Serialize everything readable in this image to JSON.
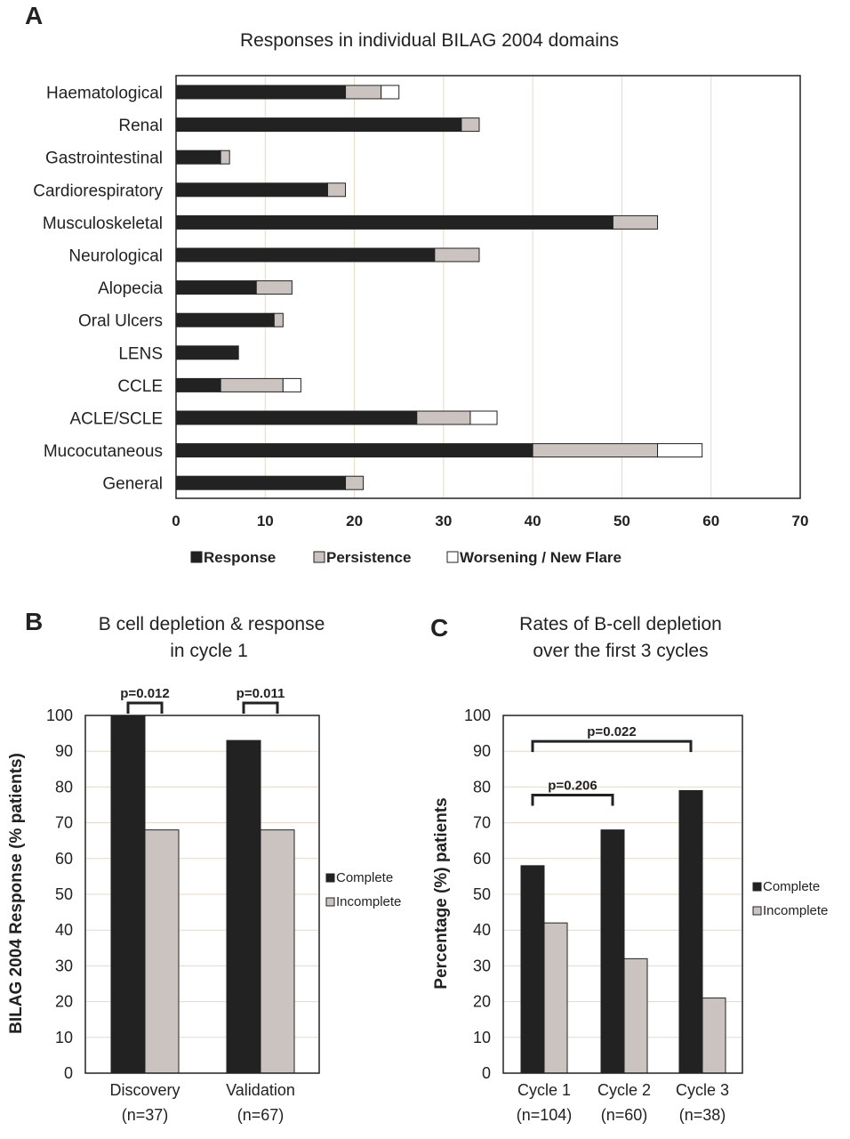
{
  "colors": {
    "response": "#222222",
    "persistence": "#cbc3bf",
    "worsening": "#ffffff",
    "grid": "#e6d9c7"
  },
  "chart_data": [
    {
      "id": "A",
      "panel_label": "A",
      "type": "bar",
      "orientation": "horizontal",
      "stacked": true,
      "title": "Responses in individual BILAG 2004 domains",
      "categories": [
        "Haematological",
        "Renal",
        "Gastrointestinal",
        "Cardiorespiratory",
        "Musculoskeletal",
        "Neurological",
        "Alopecia",
        "Oral Ulcers",
        "LENS",
        "CCLE",
        "ACLE/SCLE",
        "Mucocutaneous",
        "General"
      ],
      "series": [
        {
          "name": "Response",
          "values": [
            19,
            32,
            5,
            17,
            49,
            29,
            9,
            11,
            7,
            5,
            27,
            40,
            19
          ]
        },
        {
          "name": "Persistence",
          "values": [
            4,
            2,
            1,
            2,
            5,
            5,
            4,
            1,
            0,
            7,
            6,
            14,
            2
          ]
        },
        {
          "name": "Worsening / New Flare",
          "values": [
            2,
            0,
            0,
            0,
            0,
            0,
            0,
            0,
            0,
            2,
            3,
            5,
            0
          ]
        }
      ],
      "xlim": [
        0,
        70
      ],
      "xticks": [
        "0",
        "10",
        "20",
        "30",
        "40",
        "50",
        "60",
        "70"
      ],
      "grid": true,
      "legend": "bottom"
    },
    {
      "id": "B",
      "panel_label": "B",
      "type": "bar",
      "title_lines": [
        "B cell depletion & response",
        "in cycle 1"
      ],
      "ylabel": "BILAG 2004 Response (% patients)",
      "categories": [
        {
          "line1": "Discovery",
          "line2": "(n=37)"
        },
        {
          "line1": "Validation",
          "line2": "(n=67)"
        }
      ],
      "series": [
        {
          "name": "Complete",
          "values": [
            100,
            93
          ]
        },
        {
          "name": "Incomplete",
          "values": [
            68,
            68
          ]
        }
      ],
      "ylim": [
        0,
        100
      ],
      "yticks": [
        "0",
        "10",
        "20",
        "30",
        "40",
        "50",
        "60",
        "70",
        "80",
        "90",
        "100"
      ],
      "grid": true,
      "legend": "right",
      "annotations": [
        {
          "text": "p=0.012",
          "from": 0,
          "to": 0
        },
        {
          "text": "p=0.011",
          "from": 1,
          "to": 1
        }
      ]
    },
    {
      "id": "C",
      "panel_label": "C",
      "type": "bar",
      "title_lines": [
        "Rates of B-cell depletion",
        "over the first 3 cycles"
      ],
      "ylabel": "Percentage (%) patients",
      "categories": [
        {
          "line1": "Cycle 1",
          "line2": "(n=104)"
        },
        {
          "line1": "Cycle 2",
          "line2": "(n=60)"
        },
        {
          "line1": "Cycle 3",
          "line2": "(n=38)"
        }
      ],
      "series": [
        {
          "name": "Complete",
          "values": [
            58,
            68,
            79
          ]
        },
        {
          "name": "Incomplete",
          "values": [
            42,
            32,
            21
          ]
        }
      ],
      "ylim": [
        0,
        100
      ],
      "yticks": [
        "0",
        "10",
        "20",
        "30",
        "40",
        "50",
        "60",
        "70",
        "80",
        "90",
        "100"
      ],
      "grid": true,
      "legend": "right",
      "annotations": [
        {
          "text": "p=0.022",
          "from": 0,
          "to": 2,
          "level": 91
        },
        {
          "text": "p=0.206",
          "from": 0,
          "to": 1,
          "level": 76
        }
      ]
    }
  ]
}
